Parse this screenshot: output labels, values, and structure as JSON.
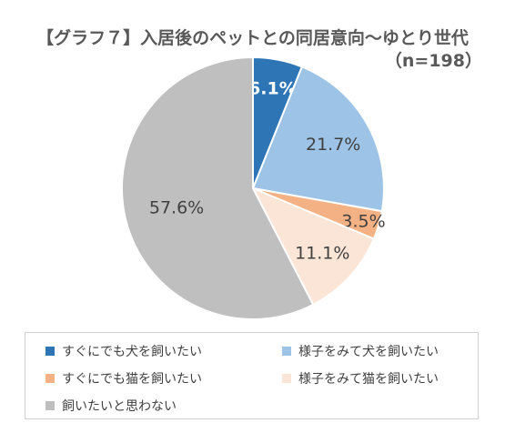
{
  "chart_data": {
    "type": "pie",
    "title": "【グラフ７】入居後のペットとの同居意向～ゆとり世代",
    "subtitle": "（n=198）",
    "slices": [
      {
        "label": "すぐにでも犬を飼いたい",
        "value": 6.1,
        "display": "6.1%",
        "color": "#2e75b6"
      },
      {
        "label": "様子をみて犬を飼いたい",
        "value": 21.7,
        "display": "21.7%",
        "color": "#9dc3e6"
      },
      {
        "label": "すぐにでも猫を飼いたい",
        "value": 3.5,
        "display": "3.5%",
        "color": "#f4b183"
      },
      {
        "label": "様子をみて猫を飼いたい",
        "value": 11.1,
        "display": "11.1%",
        "color": "#fbe5d6"
      },
      {
        "label": "飼いたいと思わない",
        "value": 57.6,
        "display": "57.6%",
        "color": "#bfbfbf"
      }
    ],
    "legend_position": "bottom"
  }
}
